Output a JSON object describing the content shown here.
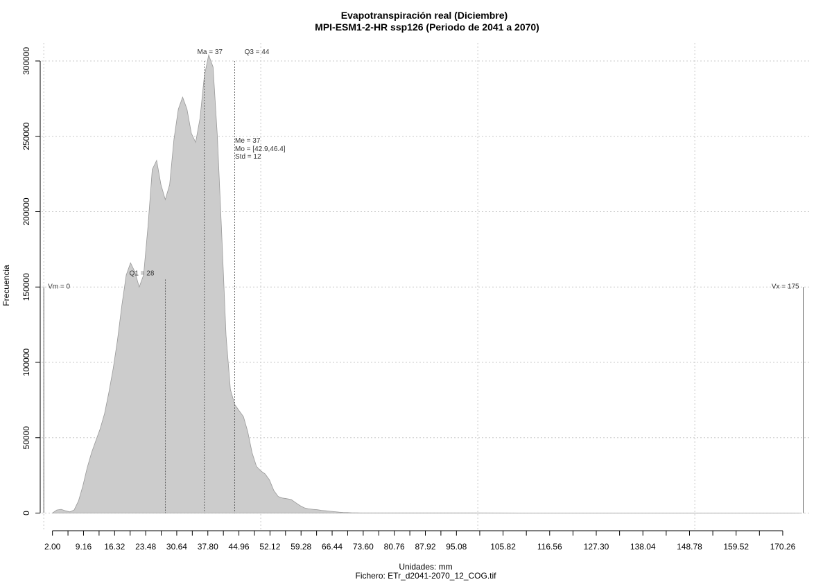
{
  "chart_data": {
    "type": "area",
    "title": "Evapotranspiración real (Diciembre)",
    "subtitle": "MPI-ESM1-2-HR ssp126 (Periodo de 2041 a 2070)",
    "xlabel": "Unidades: mm",
    "caption": "Fichero: ETr_d2041-2070_12_COG.tif",
    "ylabel": "Frecuencia",
    "xlim": [
      -0.5,
      176.5
    ],
    "ylim": [
      0,
      305000
    ],
    "x_ticks": [
      2.0,
      9.16,
      16.32,
      23.48,
      30.64,
      37.8,
      44.96,
      52.12,
      59.28,
      66.44,
      73.6,
      80.76,
      87.92,
      95.08,
      105.82,
      116.56,
      127.3,
      138.04,
      148.78,
      159.52,
      170.26
    ],
    "x_tick_labels": [
      "2.00",
      "9.16",
      "16.32",
      "23.48",
      "30.64",
      "37.80",
      "44.96",
      "52.12",
      "59.28",
      "66.44",
      "73.60",
      "80.76",
      "87.92",
      "95.08",
      "105.82",
      "116.56",
      "127.30",
      "138.04",
      "148.78",
      "159.52",
      "170.26"
    ],
    "x_minor_ticks": [
      5.58,
      12.74,
      19.9,
      27.06,
      34.22,
      41.38,
      48.54,
      55.7,
      62.86,
      70.02,
      77.18,
      84.34,
      91.5,
      100.45,
      111.19,
      121.93,
      132.67,
      143.41,
      154.15,
      164.89
    ],
    "y_ticks": [
      0,
      50000,
      100000,
      150000,
      200000,
      250000,
      300000
    ],
    "y_tick_labels": [
      "0",
      "50000",
      "100000",
      "150000",
      "200000",
      "250000",
      "300000"
    ],
    "grid_x": [
      0,
      50,
      100,
      150
    ],
    "grid_y": [
      0,
      50000,
      100000,
      150000,
      200000,
      250000,
      300000
    ],
    "grid": true,
    "fill_color": "#cccccc",
    "line_color": "#999999",
    "series": [
      {
        "x": [
          2,
          3,
          4,
          5,
          6,
          7,
          8,
          9,
          10,
          11,
          12,
          13,
          14,
          15,
          16,
          17,
          18,
          19,
          20,
          21,
          22,
          23,
          24,
          25,
          26,
          27,
          28,
          29,
          30,
          31,
          32,
          33,
          34,
          35,
          36,
          37,
          38,
          39,
          40,
          41,
          42,
          43,
          44,
          45,
          46,
          47,
          48,
          49,
          50,
          51,
          52,
          53,
          54,
          55,
          56,
          57,
          58,
          59,
          60,
          61,
          62,
          63,
          64,
          65,
          66,
          67,
          68,
          69,
          70,
          71,
          72,
          73,
          74,
          75,
          76,
          78,
          80,
          82,
          85,
          88,
          92,
          95,
          100,
          110,
          120,
          130,
          140,
          150,
          160,
          170,
          174.5
        ],
        "y": [
          0,
          2000,
          2500,
          1500,
          800,
          2000,
          8000,
          18000,
          30000,
          40000,
          48000,
          56000,
          66000,
          80000,
          96000,
          115000,
          138000,
          158000,
          166000,
          160000,
          150000,
          158000,
          190000,
          228000,
          234000,
          218000,
          208000,
          218000,
          248000,
          268000,
          276000,
          268000,
          252000,
          246000,
          262000,
          290000,
          304000,
          296000,
          250000,
          185000,
          118000,
          82000,
          72000,
          68000,
          64000,
          54000,
          40000,
          31000,
          28000,
          26000,
          22000,
          15000,
          11000,
          10000,
          9500,
          9000,
          7000,
          5000,
          3500,
          2800,
          2500,
          2200,
          1800,
          1500,
          1200,
          900,
          600,
          400,
          300,
          200,
          150,
          100,
          100,
          100,
          100,
          100,
          100,
          100,
          100,
          100,
          100,
          100,
          100,
          50,
          50,
          50,
          50,
          50,
          50,
          50,
          0
        ]
      }
    ],
    "markers": [
      {
        "label": "Vm = 0",
        "x": 0,
        "y_top": 150000
      },
      {
        "label": "Q1 = 28",
        "x": 28,
        "y_top": 155000
      },
      {
        "label": "Ma = 37",
        "x": 37,
        "y_top": 300000
      },
      {
        "label": "Q3 = 44",
        "x": 44,
        "y_top": 300000
      },
      {
        "label": "Vx = 175",
        "x": 175,
        "y_top": 150000
      }
    ],
    "stats": [
      "Me = 37",
      "Mo = [42.9,46.4]",
      "Std = 12"
    ]
  }
}
